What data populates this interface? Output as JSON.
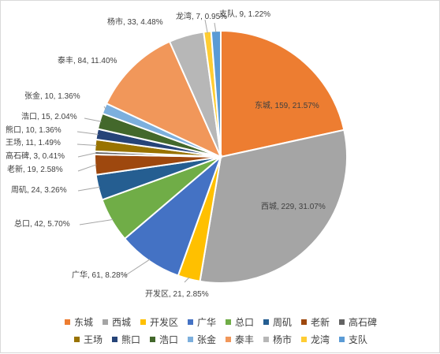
{
  "chart_data": {
    "type": "pie",
    "title": "",
    "legend_placement": "bottom",
    "slices": [
      {
        "name": "东城",
        "value": 159,
        "percent": "21.57%",
        "color": "#ed7d31"
      },
      {
        "name": "西城",
        "value": 229,
        "percent": "31.07%",
        "color": "#a5a5a5"
      },
      {
        "name": "开发区",
        "value": 21,
        "percent": "2.85%",
        "color": "#ffc000"
      },
      {
        "name": "广华",
        "value": 61,
        "percent": "8.28%",
        "color": "#4472c4"
      },
      {
        "name": "总口",
        "value": 42,
        "percent": "5.70%",
        "color": "#70ad47"
      },
      {
        "name": "周矶",
        "value": 24,
        "percent": "3.26%",
        "color": "#255e91"
      },
      {
        "name": "老新",
        "value": 19,
        "percent": "2.58%",
        "color": "#9e480e"
      },
      {
        "name": "高石碑",
        "value": 3,
        "percent": "0.41%",
        "color": "#636363"
      },
      {
        "name": "王场",
        "value": 11,
        "percent": "1.49%",
        "color": "#997300"
      },
      {
        "name": "熊口",
        "value": 10,
        "percent": "1.36%",
        "color": "#264478"
      },
      {
        "name": "浩口",
        "value": 15,
        "percent": "2.04%",
        "color": "#43682b"
      },
      {
        "name": "张金",
        "value": 10,
        "percent": "1.36%",
        "color": "#7cafdd"
      },
      {
        "name": "泰丰",
        "value": 84,
        "percent": "11.40%",
        "color": "#f1975a"
      },
      {
        "name": "杨市",
        "value": 33,
        "percent": "4.48%",
        "color": "#b7b7b7"
      },
      {
        "name": "龙湾",
        "value": 7,
        "percent": "0.95%",
        "color": "#ffcd33"
      },
      {
        "name": "支队",
        "value": 9,
        "percent": "1.22%",
        "color": "#5b9bd5"
      }
    ]
  }
}
